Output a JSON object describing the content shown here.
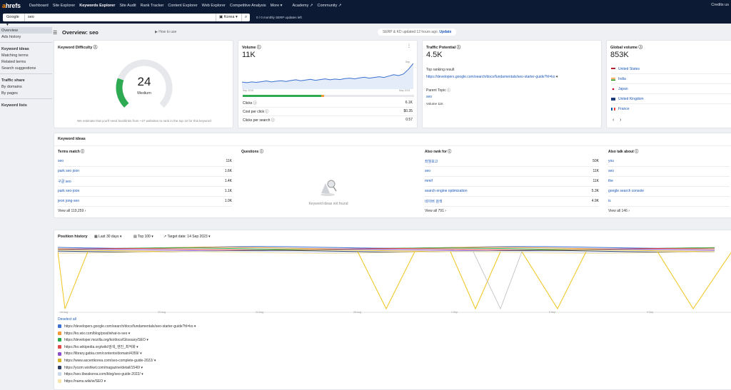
{
  "nav": {
    "logo": "ahrefs",
    "items": [
      "Dashboard",
      "Site Explorer",
      "Keywords Explorer",
      "Site Audit",
      "Rank Tracker",
      "Content Explorer",
      "Web Explorer",
      "Competitive Analysis",
      "More",
      "Academy",
      "Community"
    ],
    "credits": "Credits us"
  },
  "search": {
    "engine": "Google",
    "query": "seo",
    "country": "Korea",
    "updates_left": "0 / 0 monthly SERP updates left"
  },
  "sidebar": {
    "items": [
      "Overview",
      "Ads history"
    ],
    "keyword_ideas_head": "Keyword ideas",
    "keyword_ideas": [
      "Matching terms",
      "Related terms",
      "Search suggestions"
    ],
    "traffic_share_head": "Traffic share",
    "traffic_share": [
      "By domains",
      "By pages"
    ],
    "keyword_lists": "Keyword lists"
  },
  "overview": {
    "title": "Overview: seo",
    "how_to": "How to use",
    "serp_note": "SERP & KD updated 12 hours ago.",
    "update": "Update"
  },
  "kd": {
    "title": "Keyword Difficulty",
    "value": "24",
    "label": "Medium",
    "note": "We estimate that you'll need backlinks from ~27 websites to rank in the top 10 for this keyword",
    "fraction": 0.24
  },
  "volume": {
    "title": "Volume",
    "value": "11K",
    "axis_start": "Sep 2015",
    "axis_end": "May 2023",
    "peak_label": "Sep",
    "clicks_label": "Clicks",
    "clicks_value": "6.1K",
    "cpc_label": "Cost per click",
    "cpc_value": "$0.35",
    "cps_label": "Clicks per search",
    "cps_value": "0.57",
    "series": [
      3,
      2.8,
      3.1,
      2.9,
      3.2,
      3.5,
      3.1,
      3.4,
      3.6,
      3.3,
      3.7,
      4.0,
      3.6,
      3.9,
      4.2,
      3.8,
      4.1,
      4.4,
      4.0,
      4.3,
      4.1,
      4.5,
      4.7,
      4.4,
      4.8,
      5.1,
      4.7,
      5.0,
      5.3,
      5.0,
      5.6,
      6.2,
      5.8,
      6.5,
      8.5,
      11
    ]
  },
  "tp": {
    "title": "Traffic Potential",
    "value": "4.5K",
    "top_label": "Top ranking result",
    "top_url": "https://developers.google.com/search/docs/fundamentals/seo-starter-guide?hl=ko",
    "parent_label": "Parent Topic",
    "parent_topic": "seo",
    "parent_volume": "Volume 11K"
  },
  "global": {
    "title": "Global volume",
    "value": "853K",
    "countries": [
      "United States",
      "India",
      "Japan",
      "United Kingdom",
      "France"
    ]
  },
  "ideas": {
    "title": "Keyword ideas",
    "terms_match": {
      "title": "Terms match",
      "rows": [
        [
          "seo",
          "11K"
        ],
        [
          "park seo joon",
          "1.6K"
        ],
        [
          "구글 seo",
          "1.4K"
        ],
        [
          "park seo-joon",
          "1.1K"
        ],
        [
          "jeon jong-seo",
          "1.0K"
        ]
      ],
      "view_all": "View all 119,259"
    },
    "questions": {
      "title": "Questions",
      "empty": "Keyword ideas not found"
    },
    "also_rank": {
      "title": "Also rank for",
      "rows": [
        [
          "좌월보고",
          "50K"
        ],
        [
          "seo",
          "11K"
        ],
        [
          "mmif",
          "11K"
        ],
        [
          "search engine optimization",
          "5.3K"
        ],
        [
          "네이버 검색",
          "4.9K"
        ]
      ],
      "view_all": "View all 791"
    },
    "also_talk": {
      "title": "Also talk about",
      "rows": [
        "you",
        "seo",
        "the",
        "google search console",
        "is"
      ],
      "view_all": "View all 146"
    }
  },
  "position": {
    "title": "Position history",
    "range": "Last 30 days",
    "top": "Top 100",
    "target": "Target date: 14 Sep 2023",
    "xticks": [
      "16 Aug",
      "20 Aug",
      "24 Aug",
      "28 Aug",
      "1 Sep",
      "5 Sep",
      "9 Sep",
      "13 Sep"
    ],
    "deselect": "Deselect all",
    "legend": [
      {
        "url": "https://developers.google.com/search/docs/fundamentals/seo-starter-guide?hl=ko",
        "color": "#3b6fd1"
      },
      {
        "url": "https://ko.wix.com/blog/post/what-is-seo",
        "color": "#f29a3a"
      },
      {
        "url": "https://developer.mozilla.org/ko/docs/Glossary/SEO",
        "color": "#2aa84a"
      },
      {
        "url": "https://ko.wikipedia.org/wiki/검색_엔진_최적화",
        "color": "#e04848"
      },
      {
        "url": "https://library.gabia.com/contents/domain/4359/",
        "color": "#8a4fc9"
      },
      {
        "url": "https://www.ascentkorea.com/seo-complete-guide-2022/",
        "color": "#d8b22a"
      },
      {
        "url": "https://yozm.wishket.com/magazine/detail/1540/",
        "color": "#2c3e66"
      },
      {
        "url": "https://seo.tbwakorea.com/blog/seo-guide-2022/",
        "color": "#c9d7ea"
      },
      {
        "url": "https://namu.wiki/w/SEO",
        "color": "#f6e3a8"
      }
    ]
  }
}
